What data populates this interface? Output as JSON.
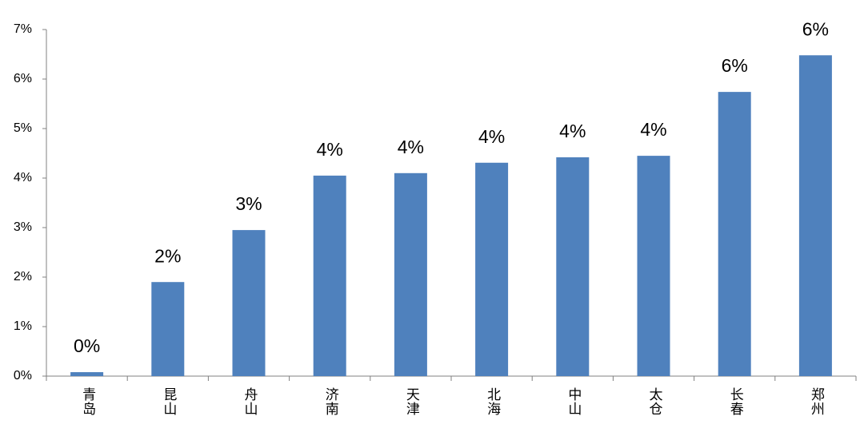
{
  "chart_data": {
    "type": "bar",
    "categories": [
      "青岛",
      "昆山",
      "舟山",
      "济南",
      "天津",
      "北海",
      "中山",
      "太仓",
      "长春",
      "郑州"
    ],
    "values": [
      0.08,
      1.9,
      2.95,
      4.05,
      4.1,
      4.31,
      4.42,
      4.45,
      5.74,
      6.48
    ],
    "value_labels": [
      "0%",
      "2%",
      "3%",
      "4%",
      "4%",
      "4%",
      "4%",
      "4%",
      "6%",
      "6%"
    ],
    "color": "#4f81bd",
    "ylim": [
      0,
      7
    ],
    "yticks": [
      {
        "value": 0,
        "label": "0%"
      },
      {
        "value": 1,
        "label": "1%"
      },
      {
        "value": 2,
        "label": "2%"
      },
      {
        "value": 3,
        "label": "3%"
      },
      {
        "value": 4,
        "label": "4%"
      },
      {
        "value": 5,
        "label": "5%"
      },
      {
        "value": 6,
        "label": "6%"
      },
      {
        "value": 7,
        "label": "7%"
      }
    ],
    "grid": false
  }
}
